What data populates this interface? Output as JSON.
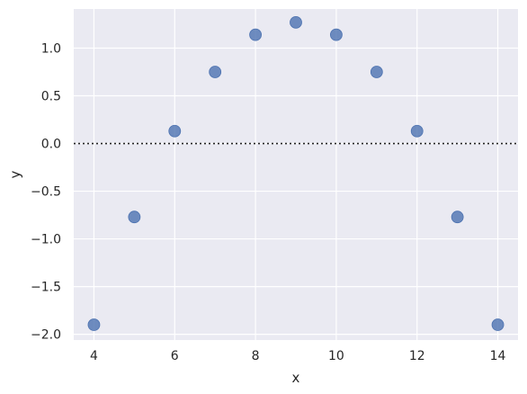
{
  "chart_data": {
    "type": "scatter",
    "title": "",
    "xlabel": "x",
    "ylabel": "y",
    "x": [
      4,
      5,
      6,
      7,
      8,
      9,
      10,
      11,
      12,
      13,
      14
    ],
    "y": [
      -1.9,
      -0.77,
      0.13,
      0.75,
      1.14,
      1.27,
      1.14,
      0.75,
      0.13,
      -0.77,
      -1.9
    ],
    "xlim": [
      3.5,
      14.5
    ],
    "ylim": [
      -2.06,
      1.41
    ],
    "xticks": [
      4,
      6,
      8,
      10,
      12,
      14
    ],
    "xtick_labels": [
      "4",
      "6",
      "8",
      "10",
      "12",
      "14"
    ],
    "yticks": [
      -2.0,
      -1.5,
      -1.0,
      -0.5,
      0.0,
      0.5,
      1.0
    ],
    "ytick_labels": [
      "−2.0",
      "−1.5",
      "−1.0",
      "−0.5",
      "0.0",
      "0.5",
      "1.0"
    ],
    "reference_line_y": 0,
    "grid": true,
    "colors": {
      "background": "#eaeaf2",
      "grid": "#ffffff",
      "marker": "#4c72b0",
      "reference_line": "#262626"
    }
  }
}
